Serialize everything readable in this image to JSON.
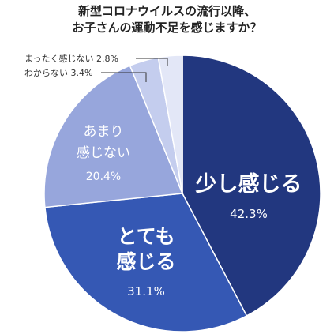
{
  "chart_data": {
    "type": "pie",
    "title_lines": [
      "新型コロナウイルスの流行以降、",
      "お子さんの運動不足を感じますか？"
    ],
    "slices": [
      {
        "name": "少し感じる",
        "value": 42.3,
        "label": "42.3%",
        "color": "#22377f"
      },
      {
        "name": "とても感じる",
        "value": 31.1,
        "label": "31.1%",
        "color": "#3558b4"
      },
      {
        "name": "あまり感じない",
        "value": 20.4,
        "label": "20.4%",
        "color": "#97a6dc"
      },
      {
        "name": "わからない",
        "value": 3.4,
        "label": "3.4%",
        "color": "#c4cdee"
      },
      {
        "name": "まったく感じない",
        "value": 2.8,
        "label": "2.8%",
        "color": "#e3e7f7"
      }
    ],
    "inside_labels": {
      "slice0": [
        "少し感じる"
      ],
      "slice1": [
        "とても",
        "感じる"
      ],
      "slice2": [
        "あまり",
        "感じない"
      ]
    },
    "outside_labels": {
      "slice3": "わからない 3.4%",
      "slice4": "まったく感じない 2.8%"
    }
  }
}
